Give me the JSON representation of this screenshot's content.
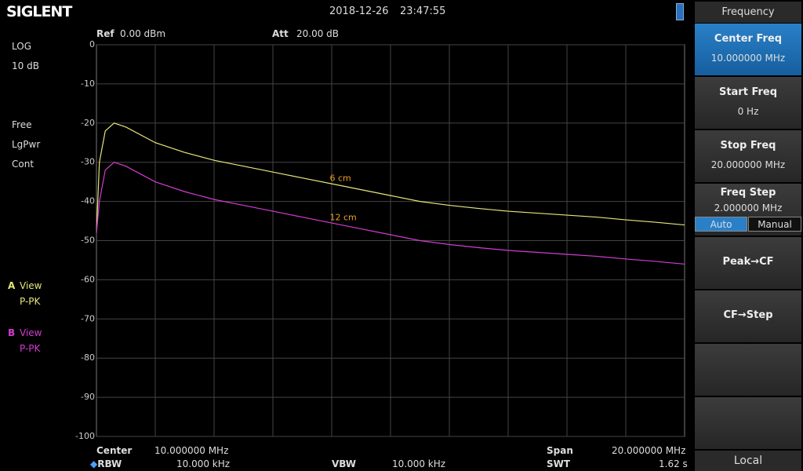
{
  "header": {
    "logo": "SIGLENT",
    "date": "2018-12-26",
    "time": "23:47:55"
  },
  "settings": {
    "ref_label": "Ref",
    "ref_value": "0.00 dBm",
    "att_label": "Att",
    "att_value": "20.00 dB"
  },
  "left_panel": {
    "scale_type": "LOG",
    "scale_div": "10 dB",
    "trig": "Free",
    "detector": "LgPwr",
    "sweep": "Cont",
    "traces": [
      {
        "letter": "A",
        "mode": "View",
        "detector": "P-PK"
      },
      {
        "letter": "B",
        "mode": "View",
        "detector": "P-PK"
      }
    ]
  },
  "footer": {
    "center_label": "Center",
    "center_value": "10.000000 MHz",
    "rbw_label": "RBW",
    "rbw_value": "10.000 kHz",
    "vbw_label": "VBW",
    "vbw_value": "10.000 kHz",
    "span_label": "Span",
    "span_value": "20.000000 MHz",
    "swt_label": "SWT",
    "swt_value": "1.62 s"
  },
  "menu": {
    "title": "Frequency",
    "buttons": [
      {
        "label": "Center Freq",
        "value": "10.000000 MHz"
      },
      {
        "label": "Start Freq",
        "value": "0 Hz"
      },
      {
        "label": "Stop Freq",
        "value": "20.000000 MHz"
      },
      {
        "label": "Freq Step",
        "value": "2.000000 MHz"
      },
      {
        "label": "Peak→CF"
      },
      {
        "label": "CF→Step"
      }
    ],
    "step_modes": [
      "Auto",
      "Manual"
    ],
    "status": "Local"
  },
  "chart_data": {
    "type": "line",
    "x": [
      0,
      0.1,
      0.3,
      0.6,
      1,
      2,
      3,
      4,
      5,
      6,
      7,
      8,
      9,
      10,
      11,
      12,
      13,
      14,
      15,
      16,
      17,
      18,
      19,
      20
    ],
    "series": [
      {
        "name": "6 cm",
        "color": "#e6e67a",
        "values": [
          -48,
          -30,
          -22,
          -20,
          -21,
          -25,
          -27.5,
          -29.5,
          -31,
          -32.5,
          -34,
          -35.5,
          -37,
          -38.5,
          -40,
          -41,
          -41.8,
          -42.5,
          -43,
          -43.5,
          -44,
          -44.7,
          -45.3,
          -46
        ]
      },
      {
        "name": "12 cm",
        "color": "#d23cd2",
        "values": [
          -48,
          -40,
          -32,
          -30,
          -31,
          -35,
          -37.5,
          -39.5,
          -41,
          -42.5,
          -44,
          -45.5,
          -47,
          -48.5,
          -50,
          -51,
          -51.8,
          -52.5,
          -53,
          -53.5,
          -54,
          -54.7,
          -55.3,
          -56
        ]
      }
    ],
    "xlim": [
      0,
      20
    ],
    "ylim": [
      -100,
      0
    ],
    "yticks": [
      0,
      -10,
      -20,
      -30,
      -40,
      -50,
      -60,
      -70,
      -80,
      -90,
      -100
    ],
    "grid": true
  }
}
